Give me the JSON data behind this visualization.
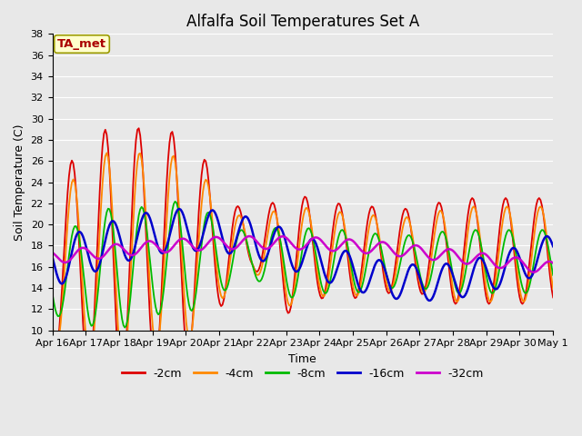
{
  "title": "Alfalfa Soil Temperatures Set A",
  "xlabel": "Time",
  "ylabel": "Soil Temperature (C)",
  "ylim": [
    10,
    38
  ],
  "yticks": [
    10,
    12,
    14,
    16,
    18,
    20,
    22,
    24,
    26,
    28,
    30,
    32,
    34,
    36,
    38
  ],
  "annotation_text": "TA_met",
  "annotation_bg": "#ffffcc",
  "annotation_border": "#999900",
  "annotation_text_color": "#aa0000",
  "bg_color": "#e0e0e0",
  "plot_bg": "#e8e8e8",
  "legend_entries": [
    "-2cm",
    "-4cm",
    "-8cm",
    "-16cm",
    "-32cm"
  ],
  "line_colors": [
    "#dd0000",
    "#ff8800",
    "#00bb00",
    "#0000cc",
    "#cc00cc"
  ],
  "line_widths": [
    1.3,
    1.3,
    1.3,
    1.8,
    1.8
  ],
  "xtick_labels": [
    "Apr 16",
    "Apr 17",
    "Apr 18",
    "Apr 19",
    "Apr 20",
    "Apr 21",
    "Apr 22",
    "Apr 23",
    "Apr 24",
    "Apr 25",
    "Apr 26",
    "Apr 27",
    "Apr 28",
    "Apr 29",
    "Apr 30",
    "May 1"
  ],
  "grid_color": "#ffffff",
  "title_fontsize": 12,
  "tick_fontsize": 8,
  "label_fontsize": 9
}
